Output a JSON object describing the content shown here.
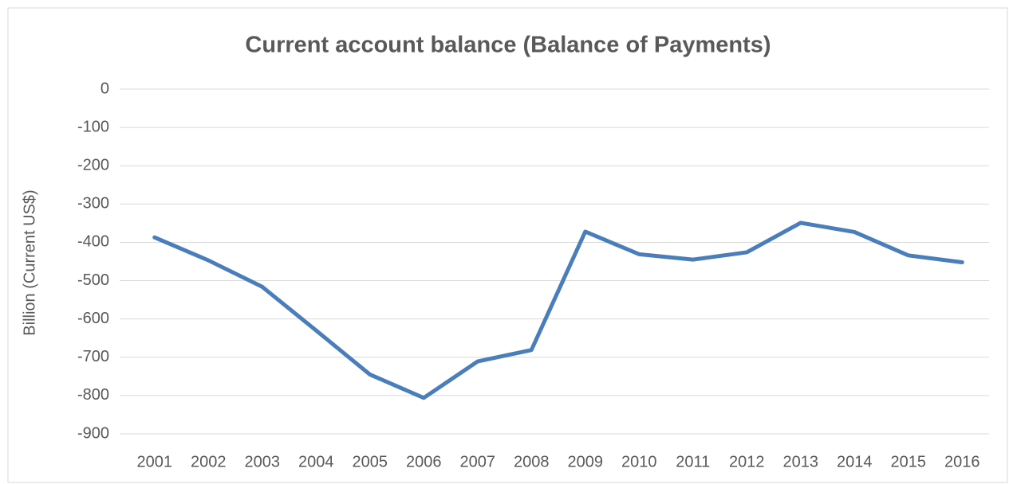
{
  "chart_data": {
    "type": "line",
    "title": "Current account balance (Balance of Payments)",
    "y_axis_label": "Billion (Current US$)",
    "categories": [
      "2001",
      "2002",
      "2003",
      "2004",
      "2005",
      "2006",
      "2007",
      "2008",
      "2009",
      "2010",
      "2011",
      "2012",
      "2013",
      "2014",
      "2015",
      "2016"
    ],
    "series": [
      {
        "name": "Current account balance",
        "color": "#4a7ebb",
        "values": [
          -387,
          -447,
          -516,
          -630,
          -745,
          -806,
          -711,
          -681,
          -372,
          -431,
          -445,
          -426,
          -349,
          -373,
          -434,
          -452
        ]
      }
    ],
    "ylim": [
      -900,
      0
    ],
    "yticks": [
      0,
      -100,
      -200,
      -300,
      -400,
      -500,
      -600,
      -700,
      -800,
      -900
    ],
    "grid": true
  }
}
